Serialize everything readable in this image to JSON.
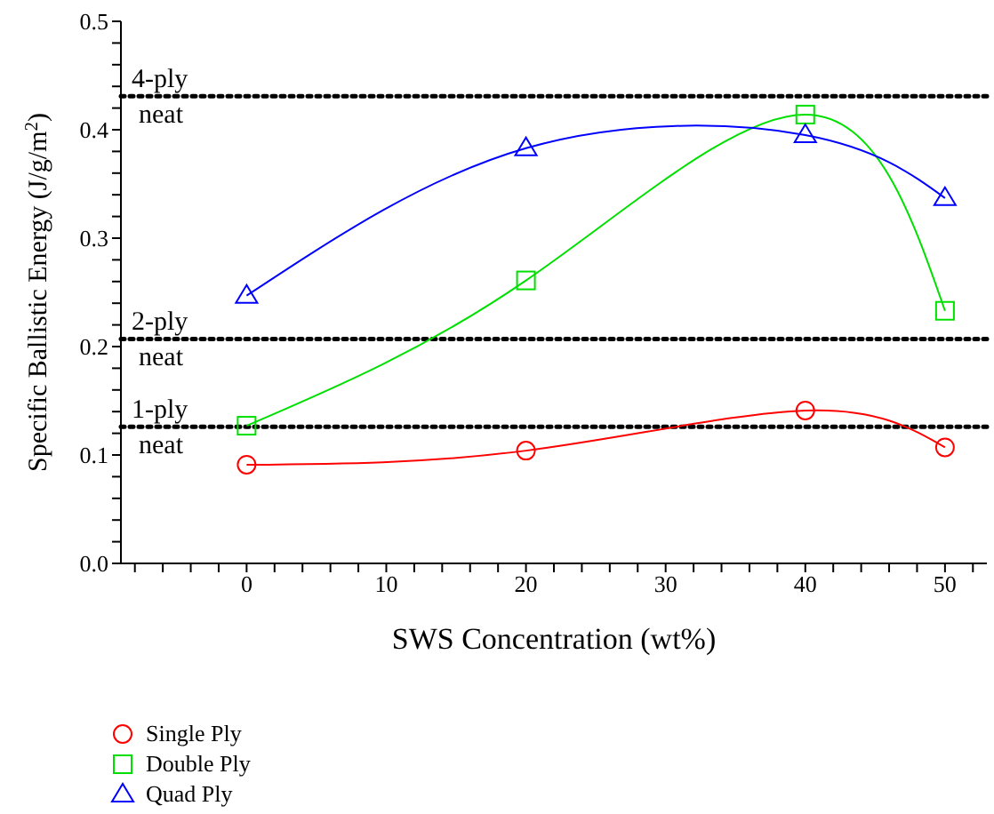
{
  "chart_data": {
    "type": "line",
    "xlabel": "SWS Concentration (wt%)",
    "ylabel": "Specific Ballistic Energy (J/g/m$^{2}$)",
    "x": [
      0,
      20,
      40,
      50
    ],
    "series": [
      {
        "name": "Single Ply",
        "color": "#ff0000",
        "marker": "circle",
        "values": [
          0.091,
          0.104,
          0.141,
          0.107
        ]
      },
      {
        "name": "Double Ply",
        "color": "#00e000",
        "marker": "square",
        "values": [
          0.127,
          0.261,
          0.414,
          0.233
        ]
      },
      {
        "name": "Quad Ply",
        "color": "#0000ff",
        "marker": "triangle",
        "values": [
          0.247,
          0.383,
          0.395,
          0.337
        ]
      }
    ],
    "xlim": [
      -9,
      53
    ],
    "xticks": [
      {
        "value": -8,
        "label": null
      },
      {
        "value": -6,
        "label": null
      },
      {
        "value": -4,
        "label": null
      },
      {
        "value": -2,
        "label": null
      },
      0,
      {
        "value": 2,
        "label": null
      },
      {
        "value": 4,
        "label": null
      },
      {
        "value": 6,
        "label": null
      },
      {
        "value": 8,
        "label": null
      },
      10,
      {
        "value": 12,
        "label": null
      },
      {
        "value": 14,
        "label": null
      },
      {
        "value": 16,
        "label": null
      },
      {
        "value": 18,
        "label": null
      },
      20,
      {
        "value": 22,
        "label": null
      },
      {
        "value": 24,
        "label": null
      },
      {
        "value": 26,
        "label": null
      },
      {
        "value": 28,
        "label": null
      },
      30,
      {
        "value": 32,
        "label": null
      },
      {
        "value": 34,
        "label": null
      },
      {
        "value": 36,
        "label": null
      },
      {
        "value": 38,
        "label": null
      },
      40,
      {
        "value": 42,
        "label": null
      },
      {
        "value": 44,
        "label": null
      },
      {
        "value": 46,
        "label": null
      },
      {
        "value": 48,
        "label": null
      },
      50,
      {
        "value": 52,
        "label": null
      }
    ],
    "ylim": [
      0,
      0.5
    ],
    "yticks": [
      {
        "value": 0,
        "label": "0.0"
      },
      {
        "value": 0.02,
        "label": null
      },
      {
        "value": 0.04,
        "label": null
      },
      {
        "value": 0.06,
        "label": null
      },
      {
        "value": 0.08,
        "label": null
      },
      0.1,
      {
        "value": 0.12,
        "label": null
      },
      {
        "value": 0.14,
        "label": null
      },
      {
        "value": 0.16,
        "label": null
      },
      {
        "value": 0.18,
        "label": null
      },
      0.2,
      {
        "value": 0.22,
        "label": null
      },
      {
        "value": 0.24,
        "label": null
      },
      {
        "value": 0.26,
        "label": null
      },
      {
        "value": 0.28,
        "label": null
      },
      0.3,
      {
        "value": 0.32,
        "label": null
      },
      {
        "value": 0.34,
        "label": null
      },
      {
        "value": 0.36,
        "label": null
      },
      {
        "value": 0.38,
        "label": null
      },
      0.4,
      {
        "value": 0.42,
        "label": null
      },
      {
        "value": 0.44,
        "label": null
      },
      {
        "value": 0.46,
        "label": null
      },
      {
        "value": 0.48,
        "label": null
      },
      0.5
    ],
    "ref_lines": [
      {
        "axis": "y",
        "value": 0.431,
        "label": "4-ply neat",
        "color": "#000000",
        "line_style": "dotted"
      },
      {
        "axis": "y",
        "value": 0.207,
        "label": "2-ply neat",
        "color": "#000000",
        "line_style": "dotted"
      },
      {
        "axis": "y",
        "value": 0.126,
        "label": "1-ply neat",
        "color": "#000000",
        "line_style": "dotted"
      }
    ],
    "grid": false,
    "legend": "bottom left",
    "line_style": "solid"
  }
}
